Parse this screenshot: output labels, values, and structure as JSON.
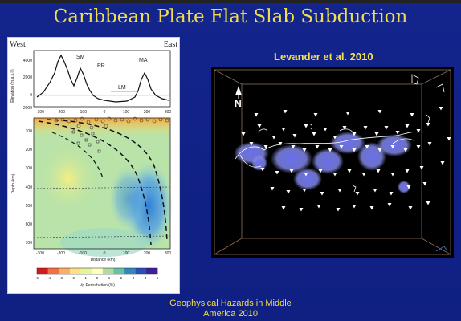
{
  "slide": {
    "title": "Caribbean Plate Flat Slab Subduction",
    "citation": "Levander et al. 2010",
    "footer_line1": "Geophysical Hazards in Middle",
    "footer_line2": "America 2010"
  },
  "figure": {
    "west_label": "West",
    "east_label": "East",
    "peaks": [
      "SM",
      "PR",
      "LM",
      "MA"
    ],
    "elevation_ylabel": "Elevation (m.a.s.l.)",
    "elevation_ticks": [
      "4000",
      "2000",
      "0",
      "-2000"
    ],
    "distance_ticks": [
      "-300",
      "-200",
      "-100",
      "0",
      "100",
      "200",
      "300"
    ],
    "depth_ylabel": "Depth (km)",
    "depth_ticks": [
      "100",
      "200",
      "300",
      "400",
      "500",
      "600",
      "700"
    ],
    "distance_label": "Distance (km)",
    "colorbar_ticks": [
      "-5",
      "-4",
      "-3",
      "-2",
      "-1",
      "0",
      "1",
      "2",
      "3",
      "4",
      "5"
    ],
    "colorbar_label": "Vp Perturbation (%)",
    "colorbar_colors": [
      "#d7191c",
      "#f46d43",
      "#fdae61",
      "#fee08b",
      "#e6f598",
      "#ffffbf",
      "#abdda4",
      "#66c2a5",
      "#3288bd",
      "#2a4db8",
      "#3b1f9b"
    ]
  },
  "map3d": {
    "north_label": "N"
  }
}
